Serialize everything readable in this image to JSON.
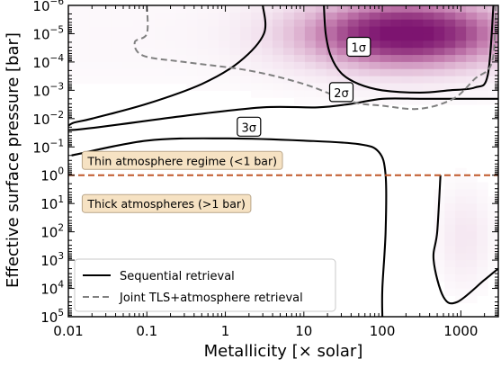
{
  "chart_data": {
    "type": "heatmap",
    "title": "",
    "xlabel": "Metallicity [× solar]",
    "ylabel": "Effective surface pressure [bar]",
    "x_scale": "log",
    "y_scale": "log",
    "y_inverted": true,
    "xlim": [
      0.01,
      3000
    ],
    "ylim": [
      1e-06,
      100000.0
    ],
    "x_ticks": [
      {
        "value": 0.01,
        "label": "0.01"
      },
      {
        "value": 0.1,
        "label": "0.1"
      },
      {
        "value": 1,
        "label": "1"
      },
      {
        "value": 10,
        "label": "10"
      },
      {
        "value": 100,
        "label": "100"
      },
      {
        "value": 1000,
        "label": "1000"
      }
    ],
    "y_ticks": [
      {
        "value": 1e-06,
        "base": "10",
        "exp": "−6"
      },
      {
        "value": 1e-05,
        "base": "10",
        "exp": "−5"
      },
      {
        "value": 0.0001,
        "base": "10",
        "exp": "−4"
      },
      {
        "value": 0.001,
        "base": "10",
        "exp": "−3"
      },
      {
        "value": 0.01,
        "base": "10",
        "exp": "−2"
      },
      {
        "value": 0.1,
        "base": "10",
        "exp": "−1"
      },
      {
        "value": 1,
        "base": "10",
        "exp": "0"
      },
      {
        "value": 10.0,
        "base": "10",
        "exp": "1"
      },
      {
        "value": 100.0,
        "base": "10",
        "exp": "2"
      },
      {
        "value": 1000.0,
        "base": "10",
        "exp": "3"
      },
      {
        "value": 10000.0,
        "base": "10",
        "exp": "4"
      },
      {
        "value": 100000.0,
        "base": "10",
        "exp": "5"
      }
    ],
    "colormap": [
      "#ffffff",
      "#f2e1ee",
      "#dfb6d3",
      "#c47daf",
      "#9a3f86",
      "#7d1470"
    ],
    "density_peak": {
      "metallicity": 200,
      "pressure": 1e-05
    },
    "contours": [
      {
        "name": "sequential-1sigma",
        "label": "1σ",
        "label_at": [
          50,
          3e-05
        ],
        "style": "solid",
        "color": "#000000",
        "points": [
          [
            18,
            1e-06
          ],
          [
            19,
            1e-05
          ],
          [
            22,
            6e-05
          ],
          [
            30,
            0.00025
          ],
          [
            50,
            0.0006
          ],
          [
            100,
            0.001
          ],
          [
            300,
            0.0012
          ],
          [
            700,
            0.001
          ],
          [
            1500,
            0.0008
          ],
          [
            2200,
            0.0003
          ],
          [
            2600,
            1e-06
          ]
        ]
      },
      {
        "name": "sequential-2sigma",
        "label": "2σ",
        "label_at": [
          30,
          0.0012
        ],
        "style": "solid",
        "color": "#000000",
        "points": [
          [
            3,
            1e-06
          ],
          [
            3.1,
            1e-05
          ],
          [
            1.5,
            0.0001
          ],
          [
            0.5,
            0.0006
          ],
          [
            0.1,
            0.003
          ],
          [
            0.02,
            0.01
          ],
          [
            0.011,
            0.015
          ],
          [
            0.012,
            0.025
          ],
          [
            0.3,
            0.008
          ],
          [
            3,
            0.004
          ],
          [
            15,
            0.004
          ],
          [
            40,
            0.003
          ],
          [
            100,
            0.002
          ],
          [
            300,
            0.002
          ],
          [
            800,
            0.002
          ],
          [
            2000,
            0.002
          ],
          [
            3000,
            0.002
          ]
        ]
      },
      {
        "name": "sequential-3sigma",
        "label": "3σ",
        "label_at": [
          2,
          0.02
        ],
        "style": "solid",
        "color": "#000000",
        "points": [
          [
            0.011,
            0.2
          ],
          [
            0.1,
            0.06
          ],
          [
            1,
            0.05
          ],
          [
            10,
            0.06
          ],
          [
            50,
            0.08
          ],
          [
            90,
            0.15
          ],
          [
            110,
            1
          ],
          [
            110,
            100.0
          ],
          [
            100,
            10000.0
          ],
          [
            100,
            100000.0
          ]
        ]
      },
      {
        "name": "sequential-3sigma-lobe",
        "style": "solid",
        "color": "#000000",
        "points": [
          [
            550,
            1
          ],
          [
            500,
            100.0
          ],
          [
            450,
            1000.0
          ],
          [
            600,
            20000.0
          ],
          [
            900,
            30000.0
          ],
          [
            2000,
            5000.0
          ],
          [
            3000,
            2000.0
          ]
        ]
      },
      {
        "name": "joint-tls-atmosphere",
        "style": "dashed",
        "color": "#808080",
        "points": [
          [
            0.1,
            1e-06
          ],
          [
            0.1,
            1e-05
          ],
          [
            0.07,
            2e-05
          ],
          [
            0.09,
            6e-05
          ],
          [
            0.3,
            0.0001
          ],
          [
            2,
            0.0002
          ],
          [
            10,
            0.0006
          ],
          [
            40,
            0.0025
          ],
          [
            100,
            0.0035
          ],
          [
            300,
            0.0045
          ],
          [
            800,
            0.002
          ],
          [
            1500,
            0.0004
          ],
          [
            2500,
            0.0001
          ],
          [
            2800,
            1e-06
          ]
        ]
      }
    ],
    "reference_line": {
      "pressure": 1,
      "style": "dashed",
      "color": "#c0582a"
    },
    "annotations": [
      {
        "text": "Thin atmosphere regime (<1 bar)",
        "at": [
          0.015,
          0.3
        ]
      },
      {
        "text": "Thick atmospheres (>1 bar)",
        "at": [
          0.015,
          10
        ]
      }
    ],
    "legend": {
      "placement": "lower-left",
      "entries": [
        {
          "label": "Sequential retrieval",
          "style": "solid",
          "color": "#000000"
        },
        {
          "label": "Joint TLS+atmosphere retrieval",
          "style": "dashed",
          "color": "#808080"
        }
      ]
    },
    "grid": false
  }
}
